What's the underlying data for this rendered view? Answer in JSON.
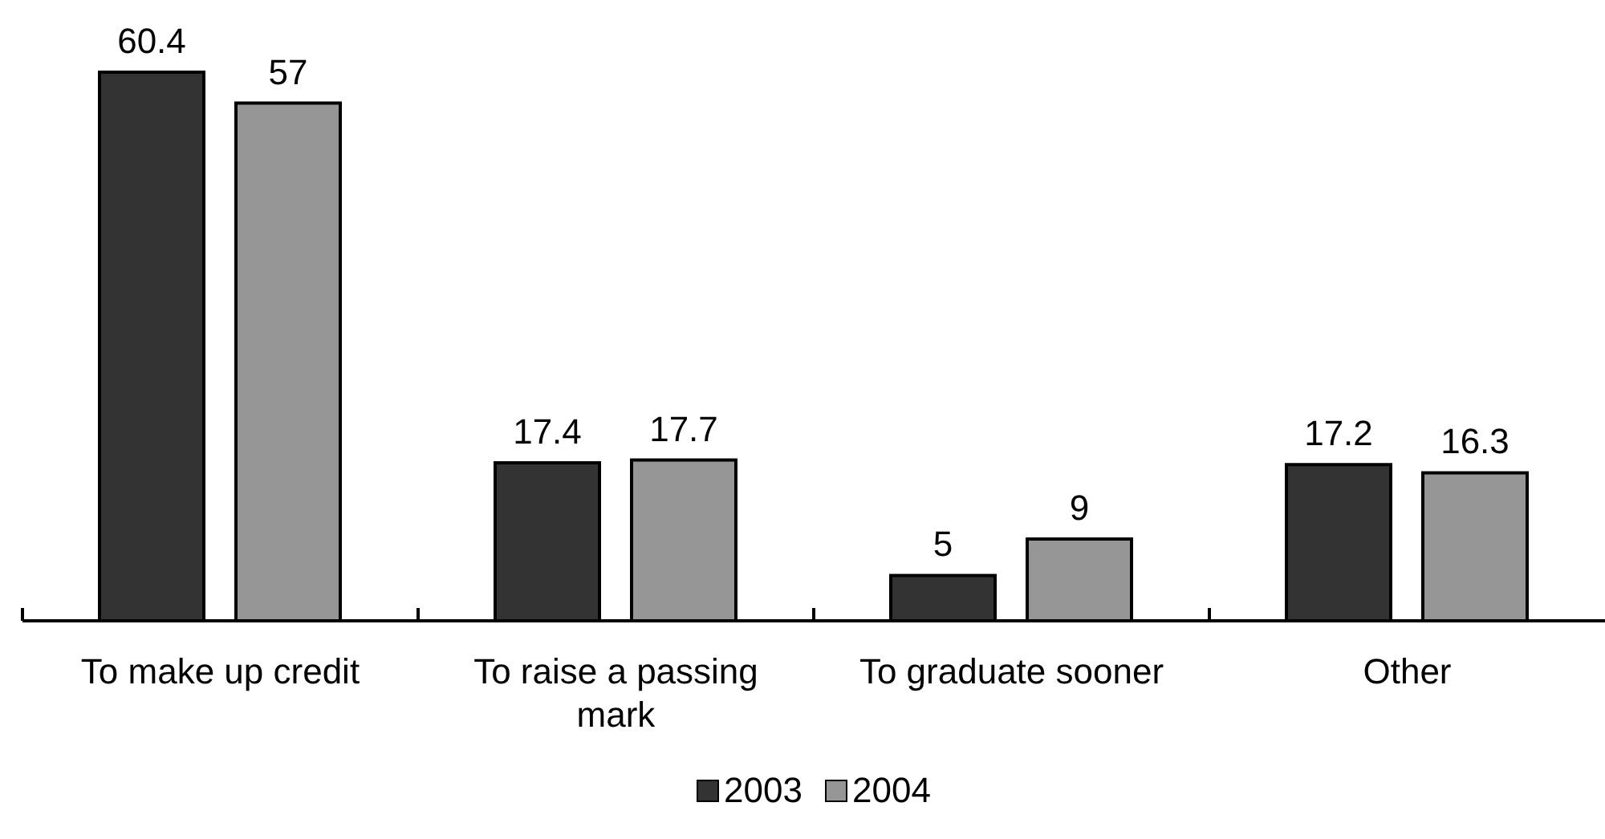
{
  "chart_data": {
    "type": "bar",
    "categories": [
      "To make up credit",
      "To raise a passing mark",
      "To graduate sooner",
      "Other"
    ],
    "series": [
      {
        "name": "2003",
        "color": "#333333",
        "values": [
          60.4,
          17.4,
          5,
          17.2
        ]
      },
      {
        "name": "2004",
        "color": "#969696",
        "values": [
          57,
          17.7,
          9,
          16.3
        ]
      }
    ],
    "data_labels": true,
    "legend": "bottom"
  }
}
